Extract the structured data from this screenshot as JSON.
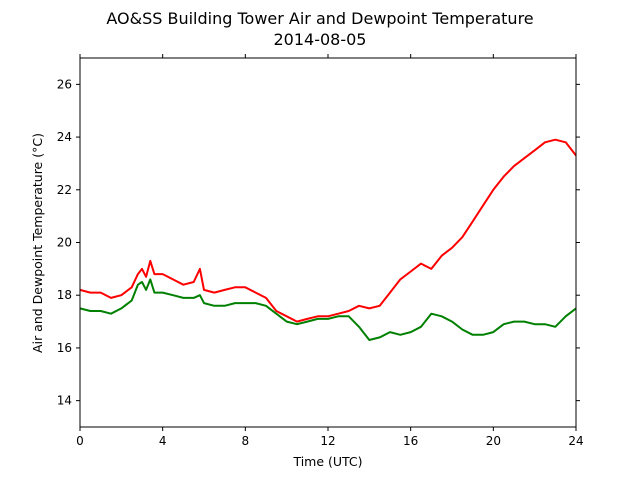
{
  "chart_data": {
    "type": "line",
    "title": "AO&SS Building Tower Air and Dewpoint Temperature",
    "subtitle": "2014-08-05",
    "xlabel": "Time (UTC)",
    "ylabel": "Air and Dewpoint Temperature (°C)",
    "xlim": [
      0,
      24
    ],
    "ylim": [
      13,
      27
    ],
    "xticks": [
      0,
      4,
      8,
      12,
      16,
      20,
      24
    ],
    "yticks": [
      14,
      16,
      18,
      20,
      22,
      24,
      26
    ],
    "grid": false,
    "series": [
      {
        "color": "#ff0000",
        "x": [
          0,
          0.5,
          1,
          1.5,
          2,
          2.5,
          2.8,
          3.0,
          3.2,
          3.4,
          3.6,
          4.0,
          4.5,
          5.0,
          5.5,
          5.8,
          6.0,
          6.5,
          7.0,
          7.5,
          8.0,
          8.5,
          9.0,
          9.5,
          10.0,
          10.5,
          11.0,
          11.5,
          12.0,
          12.5,
          13.0,
          13.5,
          14.0,
          14.5,
          15.0,
          15.5,
          16.0,
          16.5,
          17.0,
          17.5,
          18.0,
          18.5,
          19.0,
          19.5,
          20.0,
          20.5,
          21.0,
          21.5,
          22.0,
          22.5,
          23.0,
          23.5,
          24.0
        ],
        "values": [
          18.2,
          18.1,
          18.1,
          17.9,
          18.0,
          18.3,
          18.8,
          19.0,
          18.7,
          19.3,
          18.8,
          18.8,
          18.6,
          18.4,
          18.5,
          19.0,
          18.2,
          18.1,
          18.2,
          18.3,
          18.3,
          18.1,
          17.9,
          17.4,
          17.2,
          17.0,
          17.1,
          17.2,
          17.2,
          17.3,
          17.4,
          17.6,
          17.5,
          17.6,
          18.1,
          18.6,
          18.9,
          19.2,
          19.0,
          19.5,
          19.8,
          20.2,
          20.8,
          21.4,
          22.0,
          22.5,
          22.9,
          23.2,
          23.5,
          23.8,
          23.9,
          23.8,
          23.3
        ]
      },
      {
        "color": "#008000",
        "x": [
          0,
          0.5,
          1,
          1.5,
          2,
          2.5,
          2.8,
          3.0,
          3.2,
          3.4,
          3.6,
          4.0,
          4.5,
          5.0,
          5.5,
          5.8,
          6.0,
          6.5,
          7.0,
          7.5,
          8.0,
          8.5,
          9.0,
          9.5,
          10.0,
          10.5,
          11.0,
          11.5,
          12.0,
          12.5,
          13.0,
          13.5,
          14.0,
          14.5,
          15.0,
          15.5,
          16.0,
          16.5,
          17.0,
          17.5,
          18.0,
          18.5,
          19.0,
          19.5,
          20.0,
          20.5,
          21.0,
          21.5,
          22.0,
          22.5,
          23.0,
          23.5,
          24.0
        ],
        "values": [
          17.5,
          17.4,
          17.4,
          17.3,
          17.5,
          17.8,
          18.4,
          18.5,
          18.2,
          18.6,
          18.1,
          18.1,
          18.0,
          17.9,
          17.9,
          18.0,
          17.7,
          17.6,
          17.6,
          17.7,
          17.7,
          17.7,
          17.6,
          17.3,
          17.0,
          16.9,
          17.0,
          17.1,
          17.1,
          17.2,
          17.2,
          16.8,
          16.3,
          16.4,
          16.6,
          16.5,
          16.6,
          16.8,
          17.3,
          17.2,
          17.0,
          16.7,
          16.5,
          16.5,
          16.6,
          16.9,
          17.0,
          17.0,
          16.9,
          16.9,
          16.8,
          17.2,
          17.5
        ]
      }
    ]
  }
}
